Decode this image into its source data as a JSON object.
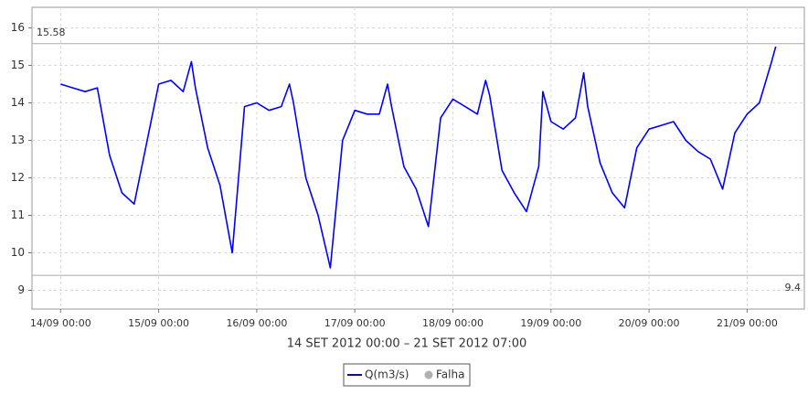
{
  "chart_data": {
    "type": "line",
    "x_label": "14 SET 2012 00:00 – 21 SET 2012 07:00",
    "x": [
      "14/09 00:00",
      "14/09 03:00",
      "14/09 06:00",
      "14/09 09:00",
      "14/09 12:00",
      "14/09 15:00",
      "14/09 18:00",
      "14/09 21:00",
      "15/09 00:00",
      "15/09 03:00",
      "15/09 06:00",
      "15/09 08:00",
      "15/09 09:00",
      "15/09 12:00",
      "15/09 15:00",
      "15/09 18:00",
      "15/09 21:00",
      "16/09 00:00",
      "16/09 03:00",
      "16/09 06:00",
      "16/09 08:00",
      "16/09 09:00",
      "16/09 12:00",
      "16/09 15:00",
      "16/09 18:00",
      "16/09 21:00",
      "17/09 00:00",
      "17/09 03:00",
      "17/09 06:00",
      "17/09 08:00",
      "17/09 09:00",
      "17/09 12:00",
      "17/09 15:00",
      "17/09 18:00",
      "17/09 21:00",
      "18/09 00:00",
      "18/09 03:00",
      "18/09 06:00",
      "18/09 08:00",
      "18/09 09:00",
      "18/09 12:00",
      "18/09 15:00",
      "18/09 18:00",
      "18/09 21:00",
      "18/09 22:00",
      "19/09 00:00",
      "19/09 03:00",
      "19/09 06:00",
      "19/09 08:00",
      "19/09 09:00",
      "19/09 12:00",
      "19/09 15:00",
      "19/09 18:00",
      "19/09 21:00",
      "20/09 00:00",
      "20/09 03:00",
      "20/09 06:00",
      "20/09 09:00",
      "20/09 12:00",
      "20/09 15:00",
      "20/09 18:00",
      "20/09 21:00",
      "21/09 00:00",
      "21/09 03:00",
      "21/09 06:00",
      "21/09 07:00"
    ],
    "series": [
      {
        "name": "Q(m3/s)",
        "color": "#0000ff",
        "values": [
          14.5,
          14.4,
          14.3,
          14.4,
          12.6,
          11.6,
          11.3,
          12.9,
          14.5,
          14.6,
          14.3,
          15.1,
          14.4,
          12.8,
          11.8,
          10.0,
          13.9,
          14.0,
          13.8,
          13.9,
          14.5,
          14.0,
          12.0,
          11.0,
          9.6,
          13.0,
          13.8,
          13.7,
          13.7,
          14.5,
          13.9,
          12.3,
          11.7,
          10.7,
          13.6,
          14.1,
          13.9,
          13.7,
          14.6,
          14.2,
          12.2,
          11.6,
          11.1,
          12.3,
          14.3,
          13.5,
          13.3,
          13.6,
          14.8,
          13.9,
          12.4,
          11.6,
          11.2,
          12.8,
          13.3,
          13.4,
          13.5,
          13.0,
          12.7,
          12.5,
          11.7,
          13.2,
          13.7,
          14.0,
          15.1,
          15.5
        ]
      }
    ],
    "fault_marker": {
      "name": "Falha",
      "color": "#b0b0b0"
    },
    "reference_lines": [
      15.58,
      9.4
    ],
    "xlim": [
      "13/09 17:00",
      "21/09 14:00"
    ],
    "xticks": [
      "14/09 00:00",
      "15/09 00:00",
      "16/09 00:00",
      "17/09 00:00",
      "18/09 00:00",
      "19/09 00:00",
      "20/09 00:00",
      "21/09 00:00"
    ],
    "ylim": [
      8.5,
      16.55
    ],
    "yticks": [
      9,
      10,
      11,
      12,
      13,
      14,
      15,
      16
    ],
    "grid": true
  }
}
